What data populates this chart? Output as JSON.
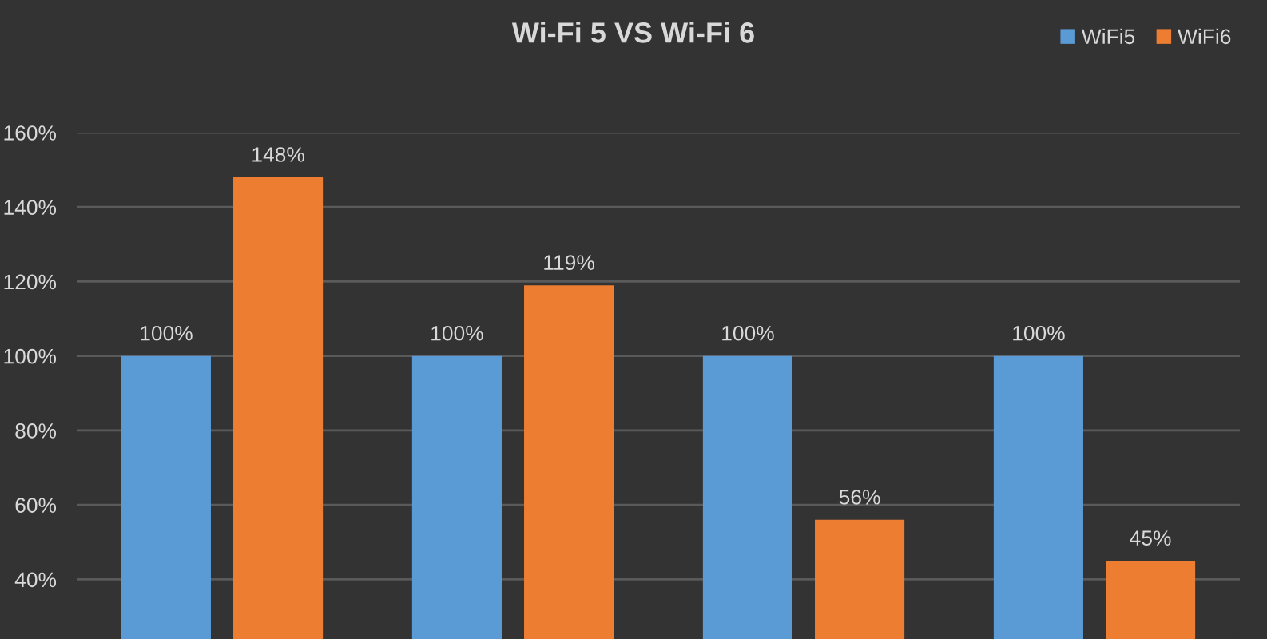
{
  "chart_data": {
    "type": "bar",
    "title": "Wi-Fi 5 VS Wi-Fi 6",
    "categories": [
      null,
      null,
      null,
      null
    ],
    "series": [
      {
        "name": "WiFi5",
        "color": "#5b9bd5",
        "values": [
          100,
          100,
          100,
          100
        ],
        "value_labels": [
          "100%",
          "100%",
          "100%",
          "100%"
        ]
      },
      {
        "name": "WiFi6",
        "color": "#ed7d31",
        "values": [
          148,
          119,
          56,
          45
        ],
        "value_labels": [
          "148%",
          "119%",
          "56%",
          "45%"
        ]
      }
    ],
    "ylim": [
      24,
      160
    ],
    "yticks": [
      {
        "value": 40,
        "label": "40%"
      },
      {
        "value": 60,
        "label": "60%"
      },
      {
        "value": 80,
        "label": "80%"
      },
      {
        "value": 100,
        "label": "100%"
      },
      {
        "value": 120,
        "label": "120%"
      },
      {
        "value": 140,
        "label": "140%"
      },
      {
        "value": 160,
        "label": "160%"
      }
    ],
    "grid": "y",
    "legend": "top right"
  }
}
